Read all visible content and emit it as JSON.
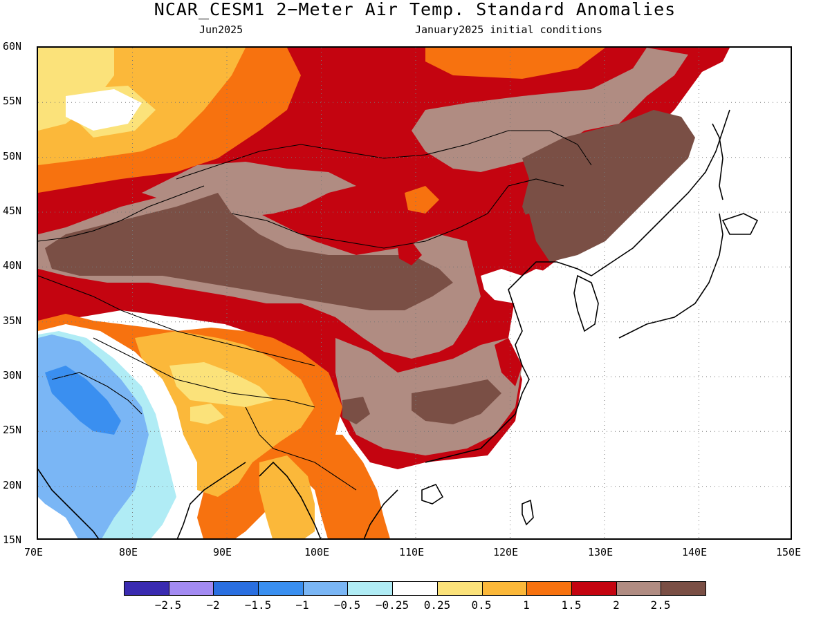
{
  "title": "NCAR_CESM1 2−Meter Air Temp. Standard Anomalies",
  "subtitle_left": "Jun2025",
  "subtitle_right": "January2025 initial conditions",
  "map": {
    "lat_labels": [
      "60N",
      "55N",
      "50N",
      "45N",
      "40N",
      "35N",
      "30N",
      "25N",
      "20N",
      "15N"
    ],
    "lon_labels": [
      "70E",
      "80E",
      "90E",
      "100E",
      "110E",
      "120E",
      "130E",
      "140E",
      "150E"
    ],
    "grid": "dotted"
  },
  "colorbar": {
    "colors": [
      "#3a2bb0",
      "#a38bf2",
      "#2a6fe0",
      "#3a8ff0",
      "#7ab6f5",
      "#b0ecf5",
      "#ffffff",
      "#fbe27a",
      "#fbb83a",
      "#f7720f",
      "#c40410",
      "#b08c82",
      "#7a4f45"
    ],
    "labels": [
      "−2.5",
      "−2",
      "−1.5",
      "−1",
      "−0.5",
      "−0.25",
      "0.25",
      "0.5",
      "1",
      "1.5",
      "2",
      "2.5"
    ]
  }
}
